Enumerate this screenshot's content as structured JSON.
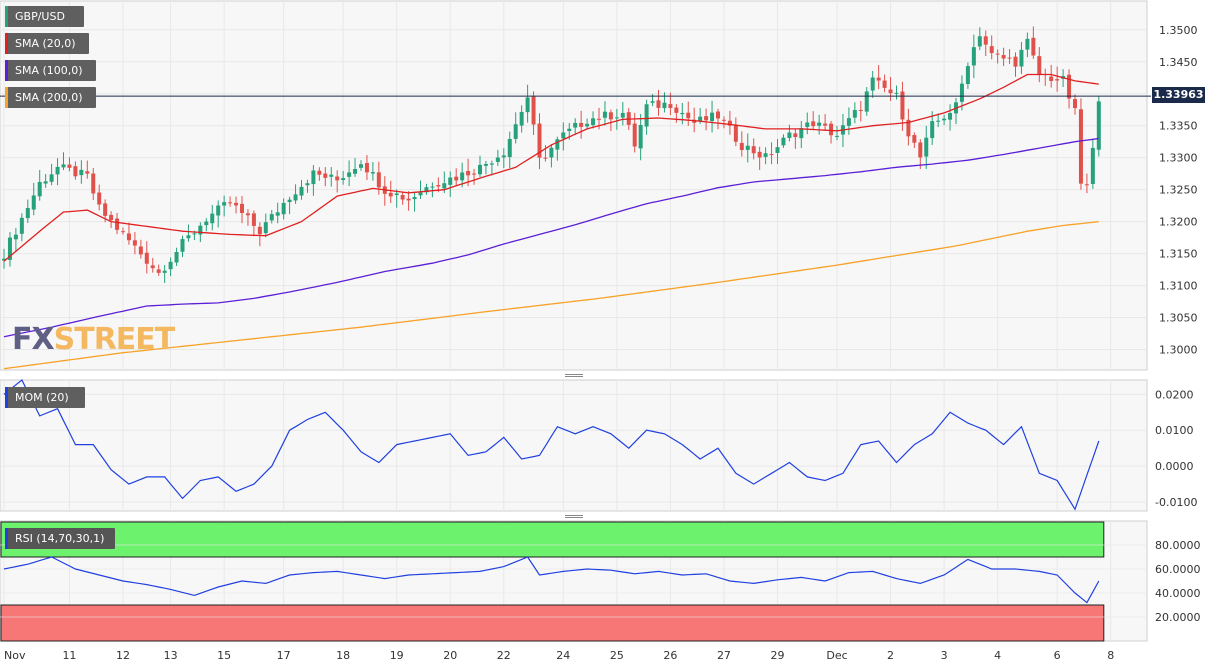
{
  "instrument": "GBP/USD",
  "watermark": {
    "fx": "FX",
    "street": "STREET"
  },
  "last_price": "1.33963",
  "legend": {
    "price": "GBP/USD",
    "sma20": "SMA (20,0)",
    "sma100": "SMA (100,0)",
    "sma200": "SMA (200,0)",
    "mom": "MOM (20)",
    "rsi": "RSI (14,70,30,1)"
  },
  "colors": {
    "bull": "#26a17b",
    "bear": "#e0514c",
    "sma20": "#e02020",
    "sma100": "#5b1fd6",
    "sma200": "#f7a228",
    "mom": "#2040e0",
    "rsi": "#2040e0",
    "overbought": "#6cf26c",
    "oversold": "#f77777",
    "grid": "#e8e8e8"
  },
  "chart_data": [
    {
      "type": "candlestick",
      "title": "GBP/USD",
      "ylim": [
        1.2968,
        1.3545
      ],
      "yticks": [
        "1.3500",
        "1.3450",
        "1.3400",
        "1.3350",
        "1.3300",
        "1.3250",
        "1.3200",
        "1.3150",
        "1.3100",
        "1.3050",
        "1.3000"
      ],
      "x_axis_labels": [
        "Nov",
        "11",
        "12",
        "13",
        "15",
        "17",
        "18",
        "19",
        "20",
        "22",
        "24",
        "25",
        "26",
        "27",
        "29",
        "Dec",
        "2",
        "3",
        "4",
        "6",
        "8"
      ],
      "x_axis_label_positions": [
        0,
        11,
        20,
        28,
        37,
        47,
        57,
        66,
        75,
        84,
        94,
        103,
        112,
        121,
        130,
        140,
        149,
        158,
        167,
        177,
        186
      ],
      "close_anchors": [
        [
          0,
          1.315
        ],
        [
          6,
          1.326
        ],
        [
          9,
          1.3285
        ],
        [
          14,
          1.327
        ],
        [
          16,
          1.322
        ],
        [
          21,
          1.317
        ],
        [
          26,
          1.312
        ],
        [
          30,
          1.3165
        ],
        [
          34,
          1.3205
        ],
        [
          38,
          1.323
        ],
        [
          43,
          1.3185
        ],
        [
          48,
          1.324
        ],
        [
          52,
          1.3275
        ],
        [
          56,
          1.3265
        ],
        [
          60,
          1.3295
        ],
        [
          64,
          1.325
        ],
        [
          68,
          1.3235
        ],
        [
          72,
          1.326
        ],
        [
          76,
          1.327
        ],
        [
          80,
          1.3285
        ],
        [
          84,
          1.331
        ],
        [
          88,
          1.3395
        ],
        [
          90,
          1.3295
        ],
        [
          94,
          1.3335
        ],
        [
          98,
          1.336
        ],
        [
          104,
          1.337
        ],
        [
          106,
          1.332
        ],
        [
          108,
          1.338
        ],
        [
          112,
          1.3385
        ],
        [
          116,
          1.3355
        ],
        [
          120,
          1.3365
        ],
        [
          124,
          1.332
        ],
        [
          128,
          1.33
        ],
        [
          132,
          1.3335
        ],
        [
          136,
          1.3355
        ],
        [
          140,
          1.3335
        ],
        [
          144,
          1.338
        ],
        [
          146,
          1.342
        ],
        [
          150,
          1.3395
        ],
        [
          152,
          1.334
        ],
        [
          154,
          1.33
        ],
        [
          156,
          1.335
        ],
        [
          160,
          1.338
        ],
        [
          162,
          1.345
        ],
        [
          164,
          1.3495
        ],
        [
          166,
          1.346
        ],
        [
          170,
          1.345
        ],
        [
          172,
          1.348
        ],
        [
          174,
          1.343
        ],
        [
          176,
          1.3425
        ],
        [
          178,
          1.342
        ],
        [
          180,
          1.337
        ],
        [
          181,
          1.326
        ],
        [
          182,
          1.3255
        ],
        [
          183,
          1.331
        ],
        [
          184,
          1.3396
        ]
      ],
      "sma20_anchors": [
        [
          0,
          1.3138
        ],
        [
          6,
          1.3185
        ],
        [
          10,
          1.3215
        ],
        [
          14,
          1.3218
        ],
        [
          18,
          1.32
        ],
        [
          22,
          1.3195
        ],
        [
          26,
          1.319
        ],
        [
          30,
          1.3185
        ],
        [
          38,
          1.318
        ],
        [
          44,
          1.3178
        ],
        [
          50,
          1.32
        ],
        [
          56,
          1.324
        ],
        [
          62,
          1.3252
        ],
        [
          68,
          1.3245
        ],
        [
          74,
          1.325
        ],
        [
          80,
          1.3268
        ],
        [
          86,
          1.3285
        ],
        [
          92,
          1.332
        ],
        [
          98,
          1.3345
        ],
        [
          104,
          1.336
        ],
        [
          110,
          1.3362
        ],
        [
          116,
          1.3358
        ],
        [
          122,
          1.3352
        ],
        [
          128,
          1.3345
        ],
        [
          134,
          1.3345
        ],
        [
          140,
          1.3342
        ],
        [
          146,
          1.335
        ],
        [
          152,
          1.3355
        ],
        [
          158,
          1.337
        ],
        [
          164,
          1.3392
        ],
        [
          168,
          1.341
        ],
        [
          172,
          1.343
        ],
        [
          176,
          1.343
        ],
        [
          180,
          1.342
        ],
        [
          184,
          1.3415
        ]
      ],
      "sma100_anchors": [
        [
          0,
          1.302
        ],
        [
          8,
          1.3035
        ],
        [
          16,
          1.3052
        ],
        [
          24,
          1.3068
        ],
        [
          30,
          1.3071
        ],
        [
          36,
          1.3073
        ],
        [
          42,
          1.308
        ],
        [
          48,
          1.309
        ],
        [
          56,
          1.3105
        ],
        [
          64,
          1.3122
        ],
        [
          72,
          1.3135
        ],
        [
          78,
          1.3148
        ],
        [
          84,
          1.3165
        ],
        [
          90,
          1.318
        ],
        [
          96,
          1.3195
        ],
        [
          102,
          1.3212
        ],
        [
          108,
          1.3228
        ],
        [
          114,
          1.324
        ],
        [
          120,
          1.3253
        ],
        [
          126,
          1.3262
        ],
        [
          132,
          1.3267
        ],
        [
          138,
          1.3272
        ],
        [
          144,
          1.3278
        ],
        [
          150,
          1.3285
        ],
        [
          156,
          1.329
        ],
        [
          162,
          1.3296
        ],
        [
          168,
          1.3305
        ],
        [
          174,
          1.3315
        ],
        [
          180,
          1.3325
        ],
        [
          184,
          1.333
        ]
      ],
      "sma200_anchors": [
        [
          0,
          1.297
        ],
        [
          20,
          1.2995
        ],
        [
          40,
          1.3015
        ],
        [
          60,
          1.3035
        ],
        [
          80,
          1.3058
        ],
        [
          100,
          1.308
        ],
        [
          120,
          1.3105
        ],
        [
          140,
          1.3132
        ],
        [
          160,
          1.3162
        ],
        [
          172,
          1.3185
        ],
        [
          178,
          1.3194
        ],
        [
          184,
          1.32
        ]
      ]
    },
    {
      "type": "line",
      "title": "MOM (20)",
      "ylim": [
        -0.0125,
        0.024
      ],
      "yticks": [
        "0.0200",
        "0.0100",
        "0.0000",
        "-0.0100"
      ],
      "anchors": [
        [
          0,
          0.02
        ],
        [
          3,
          0.024
        ],
        [
          6,
          0.014
        ],
        [
          9,
          0.016
        ],
        [
          12,
          0.006
        ],
        [
          15,
          0.006
        ],
        [
          18,
          -0.001
        ],
        [
          21,
          -0.005
        ],
        [
          24,
          -0.003
        ],
        [
          27,
          -0.003
        ],
        [
          30,
          -0.009
        ],
        [
          33,
          -0.004
        ],
        [
          36,
          -0.003
        ],
        [
          39,
          -0.007
        ],
        [
          42,
          -0.005
        ],
        [
          45,
          0.0
        ],
        [
          48,
          0.01
        ],
        [
          51,
          0.013
        ],
        [
          54,
          0.015
        ],
        [
          57,
          0.01
        ],
        [
          60,
          0.004
        ],
        [
          63,
          0.001
        ],
        [
          66,
          0.006
        ],
        [
          69,
          0.007
        ],
        [
          72,
          0.008
        ],
        [
          75,
          0.009
        ],
        [
          78,
          0.003
        ],
        [
          81,
          0.004
        ],
        [
          84,
          0.008
        ],
        [
          87,
          0.002
        ],
        [
          90,
          0.003
        ],
        [
          93,
          0.011
        ],
        [
          96,
          0.009
        ],
        [
          99,
          0.011
        ],
        [
          102,
          0.009
        ],
        [
          105,
          0.005
        ],
        [
          108,
          0.01
        ],
        [
          111,
          0.009
        ],
        [
          114,
          0.006
        ],
        [
          117,
          0.002
        ],
        [
          120,
          0.005
        ],
        [
          123,
          -0.002
        ],
        [
          126,
          -0.005
        ],
        [
          129,
          -0.002
        ],
        [
          132,
          0.001
        ],
        [
          135,
          -0.003
        ],
        [
          138,
          -0.004
        ],
        [
          141,
          -0.002
        ],
        [
          144,
          0.006
        ],
        [
          147,
          0.007
        ],
        [
          150,
          0.001
        ],
        [
          153,
          0.006
        ],
        [
          156,
          0.009
        ],
        [
          159,
          0.015
        ],
        [
          162,
          0.012
        ],
        [
          165,
          0.01
        ],
        [
          168,
          0.006
        ],
        [
          171,
          0.011
        ],
        [
          174,
          -0.002
        ],
        [
          177,
          -0.004
        ],
        [
          180,
          -0.012
        ],
        [
          184,
          0.007
        ]
      ]
    },
    {
      "type": "line",
      "title": "RSI (14,70,30,1)",
      "ylim": [
        0,
        100
      ],
      "yticks": [
        "80.0000",
        "60.0000",
        "40.0000",
        "20.0000"
      ],
      "overbought": 70,
      "oversold": 30,
      "anchors": [
        [
          0,
          60
        ],
        [
          4,
          64
        ],
        [
          8,
          70
        ],
        [
          12,
          60
        ],
        [
          16,
          55
        ],
        [
          20,
          50
        ],
        [
          24,
          47
        ],
        [
          28,
          43
        ],
        [
          32,
          38
        ],
        [
          36,
          45
        ],
        [
          40,
          50
        ],
        [
          44,
          48
        ],
        [
          48,
          55
        ],
        [
          52,
          57
        ],
        [
          56,
          58
        ],
        [
          60,
          55
        ],
        [
          64,
          52
        ],
        [
          68,
          55
        ],
        [
          72,
          56
        ],
        [
          76,
          57
        ],
        [
          80,
          58
        ],
        [
          84,
          62
        ],
        [
          88,
          70
        ],
        [
          90,
          55
        ],
        [
          94,
          58
        ],
        [
          98,
          60
        ],
        [
          102,
          59
        ],
        [
          106,
          56
        ],
        [
          110,
          58
        ],
        [
          114,
          55
        ],
        [
          118,
          56
        ],
        [
          122,
          50
        ],
        [
          126,
          48
        ],
        [
          130,
          51
        ],
        [
          134,
          53
        ],
        [
          138,
          50
        ],
        [
          142,
          57
        ],
        [
          146,
          58
        ],
        [
          150,
          52
        ],
        [
          154,
          48
        ],
        [
          158,
          55
        ],
        [
          162,
          68
        ],
        [
          166,
          60
        ],
        [
          170,
          60
        ],
        [
          174,
          58
        ],
        [
          177,
          55
        ],
        [
          180,
          40
        ],
        [
          182,
          32
        ],
        [
          184,
          50
        ]
      ]
    }
  ]
}
